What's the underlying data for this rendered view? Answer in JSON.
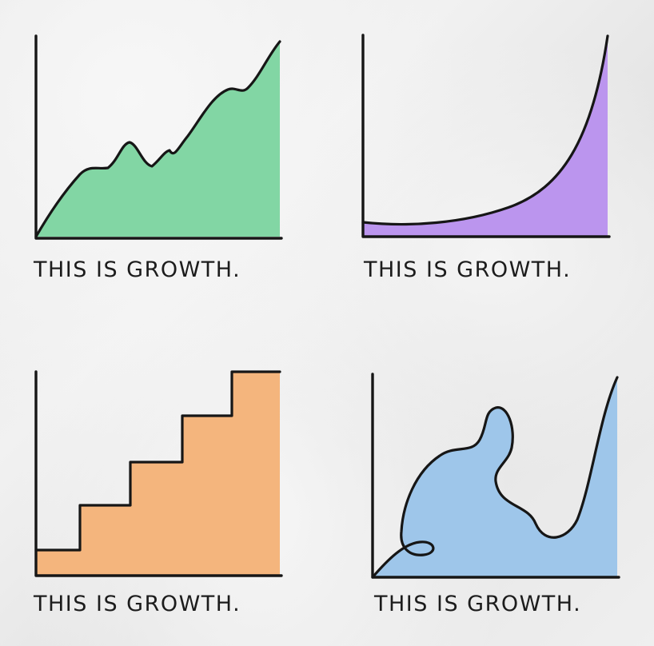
{
  "chart_data": [
    {
      "type": "area",
      "caption": "THIS IS GROWTH.",
      "title": "",
      "xlabel": "",
      "ylabel": "",
      "x": [
        0,
        0.09,
        0.18,
        0.26,
        0.36,
        0.45,
        0.54,
        0.61,
        0.69,
        0.78,
        0.86,
        0.93,
        1.0
      ],
      "values": [
        0,
        0.2,
        0.33,
        0.29,
        0.46,
        0.38,
        0.31,
        0.43,
        0.48,
        0.71,
        0.72,
        0.88,
        1.0
      ],
      "xlim": [
        0,
        1
      ],
      "ylim": [
        0,
        1.0
      ],
      "grid": false,
      "color": "#82d6a4"
    },
    {
      "type": "area",
      "caption": "THIS IS GROWTH.",
      "title": "",
      "xlabel": "",
      "ylabel": "",
      "x": [
        0,
        0.1,
        0.2,
        0.3,
        0.4,
        0.5,
        0.6,
        0.7,
        0.8,
        0.9,
        1.0
      ],
      "values": [
        0.07,
        0.07,
        0.08,
        0.1,
        0.13,
        0.18,
        0.26,
        0.36,
        0.5,
        0.7,
        1.0
      ],
      "xlim": [
        0,
        1
      ],
      "ylim": [
        0,
        1.0
      ],
      "grid": false,
      "color": "#bb95ee"
    },
    {
      "type": "area",
      "caption": "THIS IS GROWTH.",
      "title": "",
      "xlabel": "",
      "ylabel": "",
      "x": [
        0,
        0.19,
        0.19,
        0.39,
        0.39,
        0.6,
        0.6,
        0.8,
        0.8,
        1.0
      ],
      "values": [
        0.12,
        0.12,
        0.35,
        0.35,
        0.54,
        0.54,
        0.76,
        0.76,
        1.0,
        1.0
      ],
      "xlim": [
        0,
        1
      ],
      "ylim": [
        0,
        1.0
      ],
      "grid": false,
      "color": "#f4b57d"
    },
    {
      "type": "area",
      "caption": "THIS IS GROWTH.",
      "title": "",
      "xlabel": "",
      "ylabel": "",
      "shape": "looping-wavy",
      "xlim": [
        0,
        1
      ],
      "ylim": [
        0,
        1.0
      ],
      "grid": false,
      "color": "#9ec6ea"
    }
  ]
}
